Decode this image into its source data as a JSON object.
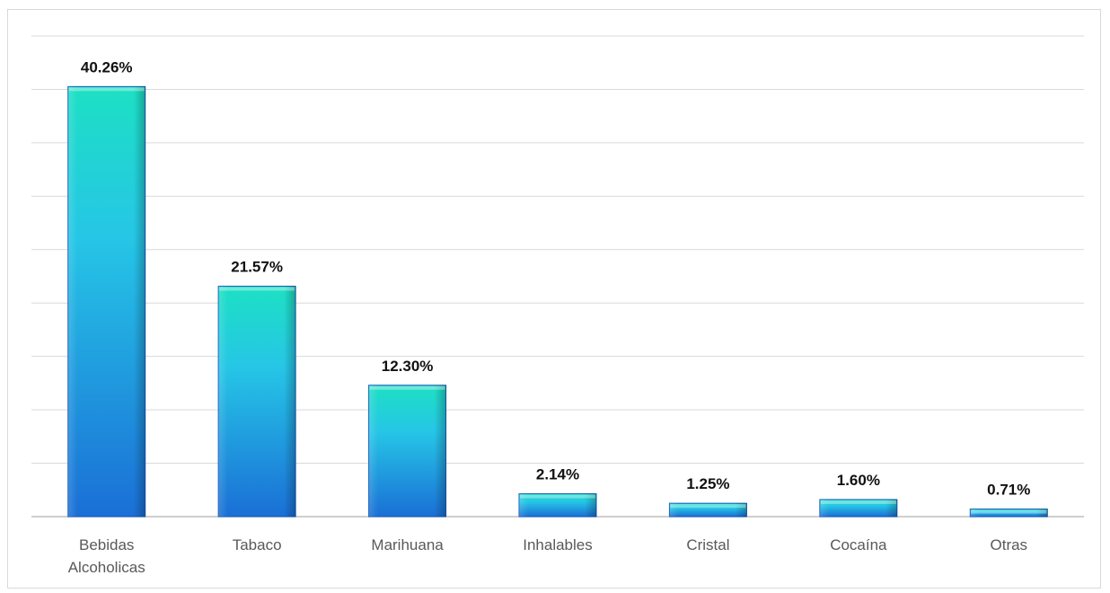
{
  "chart_data": {
    "type": "bar",
    "categories": [
      [
        "Bebidas",
        "Alcoholicas"
      ],
      [
        "Tabaco"
      ],
      [
        "Marihuana"
      ],
      [
        "Inhalables"
      ],
      [
        "Cristal"
      ],
      [
        "Cocaína"
      ],
      [
        "Otras"
      ]
    ],
    "values": [
      40.26,
      21.57,
      12.3,
      2.14,
      1.25,
      1.6,
      0.71
    ],
    "data_labels": [
      "40.26%",
      "21.57%",
      "12.30%",
      "2.14%",
      "1.25%",
      "1.60%",
      "0.71%"
    ],
    "title": "",
    "xlabel": "",
    "ylabel": "",
    "ylim": [
      0,
      45
    ],
    "grid": true,
    "colors": {
      "bar_top": "#1de0c4",
      "bar_mid": "#26c6e6",
      "bar_bottom": "#1a6fd6",
      "bar_edge": "#1458b8"
    }
  }
}
